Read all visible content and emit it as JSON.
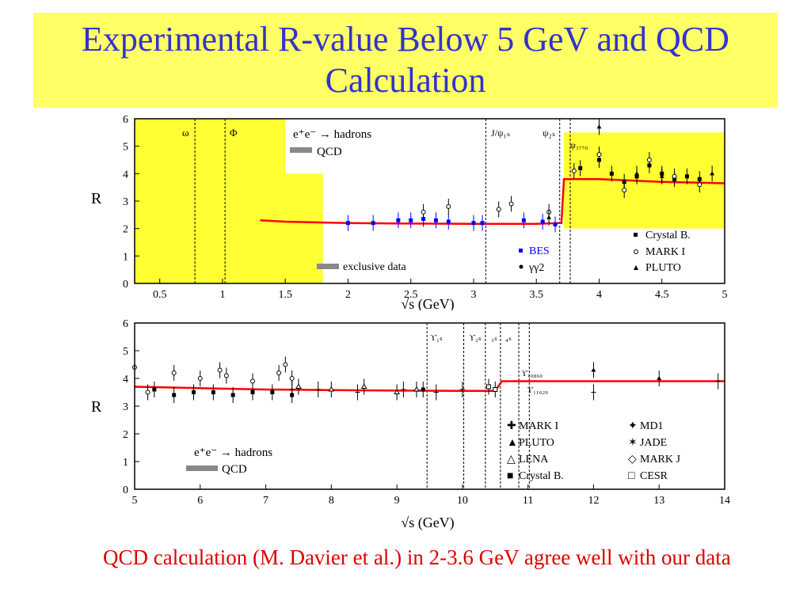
{
  "slide": {
    "title": "Experimental R-value Below 5 GeV and QCD Calculation",
    "caption": "QCD calculation (M. Davier et al.) in 2-3.6 GeV agree well with our data"
  },
  "colors": {
    "title_bg": "#ffff66",
    "title_text": "#3333cc",
    "caption": "#dd0000",
    "qcd": "#ff0000",
    "band": "#ffff33",
    "bes": "#0000ff"
  },
  "chart_data": [
    {
      "type": "scatter",
      "xlabel": "√s   (GeV)",
      "ylabel": "R",
      "xlim": [
        0.3,
        5.0
      ],
      "ylim": [
        0,
        6
      ],
      "xticks": [
        "0.5",
        "1",
        "1.5",
        "2",
        "2.5",
        "3",
        "3.5",
        "4",
        "4.5",
        "5"
      ],
      "xtick_values": [
        0.5,
        1,
        1.5,
        2,
        2.5,
        3,
        3.5,
        4,
        4.5,
        5
      ],
      "yticks": [
        "0",
        "1",
        "2",
        "3",
        "4",
        "5",
        "6"
      ],
      "legend_top": [
        "e⁺e⁻ → hadrons",
        "QCD"
      ],
      "legend_bottom": [
        "exclusive data",
        "BES",
        "γγ2",
        "Crystal B.",
        "MARK I",
        "PLUTO"
      ],
      "resonance_labels": [
        "ω",
        "Φ",
        "J/ψ₁ₛ",
        "ψ₂ₛ",
        "ψ₃₇₇₀"
      ],
      "resonances_x": [
        0.78,
        1.02,
        3.097,
        3.686,
        3.77
      ],
      "bands": [
        {
          "x": [
            0.3,
            1.5
          ],
          "y": [
            0,
            6
          ]
        },
        {
          "x": [
            1.5,
            1.8
          ],
          "y": [
            0,
            4
          ]
        },
        {
          "x": [
            3.72,
            5.0
          ],
          "y": [
            2,
            5.5
          ]
        }
      ],
      "qcd": {
        "x": [
          1.3,
          1.5,
          2.0,
          2.5,
          3.0,
          3.5,
          3.7,
          3.72,
          4.0,
          4.5,
          5.0
        ],
        "y": [
          2.3,
          2.25,
          2.2,
          2.18,
          2.17,
          2.17,
          2.2,
          3.8,
          3.8,
          3.7,
          3.65
        ]
      },
      "series": [
        {
          "name": "BES",
          "x": [
            2.0,
            2.2,
            2.4,
            2.5,
            2.6,
            2.7,
            2.8,
            3.0,
            3.07,
            3.4,
            3.55,
            3.65
          ],
          "y": [
            2.2,
            2.2,
            2.3,
            2.3,
            2.35,
            2.3,
            2.25,
            2.2,
            2.2,
            2.3,
            2.25,
            2.15
          ]
        },
        {
          "name": "Crystal B.",
          "x": [
            3.85,
            4.0,
            4.1,
            4.2,
            4.3,
            4.4,
            4.5,
            4.6,
            4.7,
            4.8
          ],
          "y": [
            4.2,
            4.5,
            4.0,
            3.7,
            3.9,
            4.3,
            4.0,
            3.8,
            3.9,
            3.8
          ]
        },
        {
          "name": "MARK I",
          "x": [
            2.6,
            2.8,
            3.2,
            3.3,
            3.6,
            3.8,
            4.0,
            4.2,
            4.4,
            4.6,
            4.8
          ],
          "y": [
            2.6,
            2.8,
            2.7,
            2.9,
            2.6,
            4.1,
            4.7,
            3.4,
            4.5,
            3.9,
            3.6
          ]
        },
        {
          "name": "PLUTO",
          "x": [
            3.6,
            4.0,
            4.3,
            4.5,
            4.9
          ],
          "y": [
            2.4,
            5.7,
            4.0,
            3.9,
            4.0
          ]
        }
      ]
    },
    {
      "type": "scatter",
      "xlabel": "√s   (GeV)",
      "ylabel": "R",
      "xlim": [
        5,
        14
      ],
      "ylim": [
        0,
        6
      ],
      "xticks": [
        "5",
        "6",
        "7",
        "8",
        "9",
        "10",
        "11",
        "12",
        "13",
        "14"
      ],
      "xtick_values": [
        5,
        6,
        7,
        8,
        9,
        10,
        11,
        12,
        13,
        14
      ],
      "yticks": [
        "0",
        "1",
        "2",
        "3",
        "4",
        "5",
        "6"
      ],
      "legend_top": [
        "e⁺e⁻ → hadrons",
        "QCD"
      ],
      "legend_right": [
        "MARK I",
        "MD1",
        "PLUTO",
        "JADE",
        "LENA",
        "MARK J",
        "Crystal B.",
        "CESR"
      ],
      "resonance_labels": [
        "ϒ₁ₛ",
        "ϒ₂ₛ",
        "₃ₛ",
        "₄ₛ",
        "ϒ₁₀₈₆₀",
        "ϒ₁₁₀₂₀"
      ],
      "resonances_x": [
        9.46,
        10.02,
        10.35,
        10.58,
        10.86,
        11.02
      ],
      "qcd": {
        "x": [
          5,
          6,
          7,
          8,
          9,
          10,
          10.5,
          10.6,
          11,
          12,
          13,
          14
        ],
        "y": [
          3.7,
          3.65,
          3.6,
          3.58,
          3.56,
          3.55,
          3.55,
          3.9,
          3.9,
          3.9,
          3.9,
          3.9
        ]
      },
      "series": [
        {
          "name": "MARK I",
          "x": [
            5.2,
            5.6,
            6.0,
            6.4,
            6.8,
            7.2,
            7.4
          ],
          "y": [
            3.5,
            4.2,
            4.0,
            4.1,
            3.9,
            4.2,
            4.0
          ]
        },
        {
          "name": "PLUTO",
          "x": [
            12.0,
            13.0
          ],
          "y": [
            4.3,
            4.0
          ]
        },
        {
          "name": "LENA",
          "x": [
            7.5,
            8.0,
            8.5,
            9.0,
            9.3
          ],
          "y": [
            3.7,
            3.6,
            3.7,
            3.5,
            3.6
          ]
        },
        {
          "name": "Crystal B.",
          "x": [
            5.3,
            5.6,
            5.9,
            6.2,
            6.5,
            6.8,
            7.1,
            7.4,
            9.4
          ],
          "y": [
            3.6,
            3.4,
            3.5,
            3.5,
            3.4,
            3.5,
            3.5,
            3.4,
            3.6
          ]
        },
        {
          "name": "MD1",
          "x": [
            7.4,
            7.8,
            8.4,
            9.1,
            9.6,
            10.0
          ],
          "y": [
            3.6,
            3.6,
            3.5,
            3.6,
            3.5,
            3.6
          ]
        },
        {
          "name": "JADE",
          "x": [
            12.0,
            13.9
          ],
          "y": [
            3.5,
            3.9
          ]
        },
        {
          "name": "MARK J",
          "x": [
            5.0,
            6.3,
            7.3
          ],
          "y": [
            4.4,
            4.3,
            4.5
          ]
        },
        {
          "name": "CESR",
          "x": [
            10.4,
            10.5
          ],
          "y": [
            3.7,
            3.6
          ]
        }
      ]
    }
  ]
}
